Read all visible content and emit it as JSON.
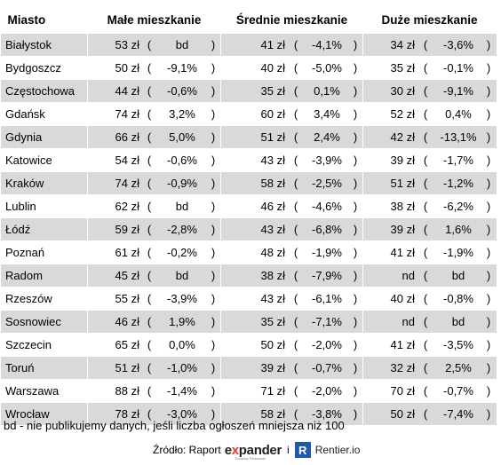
{
  "headers": {
    "city": "Miasto",
    "small": "Małe mieszkanie",
    "medium": "Średnie mieszkanie",
    "large": "Duże mieszkanie"
  },
  "rows": [
    {
      "city": "Białystok",
      "small": {
        "price": "53 zł",
        "change": "bd"
      },
      "medium": {
        "price": "41 zł",
        "change": "-4,1%"
      },
      "large": {
        "price": "34 zł",
        "change": "-3,6%"
      }
    },
    {
      "city": "Bydgoszcz",
      "small": {
        "price": "50 zł",
        "change": "-9,1%"
      },
      "medium": {
        "price": "40 zł",
        "change": "-5,0%"
      },
      "large": {
        "price": "35 zł",
        "change": "-0,1%"
      }
    },
    {
      "city": "Częstochowa",
      "small": {
        "price": "44 zł",
        "change": "-0,6%"
      },
      "medium": {
        "price": "35 zł",
        "change": "0,1%"
      },
      "large": {
        "price": "30 zł",
        "change": "-9,1%"
      }
    },
    {
      "city": "Gdańsk",
      "small": {
        "price": "74 zł",
        "change": "3,2%"
      },
      "medium": {
        "price": "60 zł",
        "change": "3,4%"
      },
      "large": {
        "price": "52 zł",
        "change": "0,4%"
      }
    },
    {
      "city": "Gdynia",
      "small": {
        "price": "66 zł",
        "change": "5,0%"
      },
      "medium": {
        "price": "51 zł",
        "change": "2,4%"
      },
      "large": {
        "price": "42 zł",
        "change": "-13,1%"
      }
    },
    {
      "city": "Katowice",
      "small": {
        "price": "54 zł",
        "change": "-0,6%"
      },
      "medium": {
        "price": "43 zł",
        "change": "-3,9%"
      },
      "large": {
        "price": "39 zł",
        "change": "-1,7%"
      }
    },
    {
      "city": "Kraków",
      "small": {
        "price": "74 zł",
        "change": "-0,9%"
      },
      "medium": {
        "price": "58 zł",
        "change": "-2,5%"
      },
      "large": {
        "price": "51 zł",
        "change": "-1,2%"
      }
    },
    {
      "city": "Lublin",
      "small": {
        "price": "62 zł",
        "change": "bd"
      },
      "medium": {
        "price": "46 zł",
        "change": "-4,6%"
      },
      "large": {
        "price": "38 zł",
        "change": "-6,2%"
      }
    },
    {
      "city": "Łódź",
      "small": {
        "price": "59 zł",
        "change": "-2,8%"
      },
      "medium": {
        "price": "43 zł",
        "change": "-6,8%"
      },
      "large": {
        "price": "39 zł",
        "change": "1,6%"
      }
    },
    {
      "city": "Poznań",
      "small": {
        "price": "61 zł",
        "change": "-0,2%"
      },
      "medium": {
        "price": "48 zł",
        "change": "-1,9%"
      },
      "large": {
        "price": "41 zł",
        "change": "-1,9%"
      }
    },
    {
      "city": "Radom",
      "small": {
        "price": "45 zł",
        "change": "bd"
      },
      "medium": {
        "price": "38 zł",
        "change": "-7,9%"
      },
      "large": {
        "price": "nd",
        "change": "bd"
      }
    },
    {
      "city": "Rzeszów",
      "small": {
        "price": "55 zł",
        "change": "-3,9%"
      },
      "medium": {
        "price": "43 zł",
        "change": "-6,1%"
      },
      "large": {
        "price": "40 zł",
        "change": "-0,8%"
      }
    },
    {
      "city": "Sosnowiec",
      "small": {
        "price": "46 zł",
        "change": "1,9%"
      },
      "medium": {
        "price": "35 zł",
        "change": "-7,1%"
      },
      "large": {
        "price": "nd",
        "change": "bd"
      }
    },
    {
      "city": "Szczecin",
      "small": {
        "price": "65 zł",
        "change": "0,0%"
      },
      "medium": {
        "price": "50 zł",
        "change": "-2,0%"
      },
      "large": {
        "price": "41 zł",
        "change": "-3,5%"
      }
    },
    {
      "city": "Toruń",
      "small": {
        "price": "51 zł",
        "change": "-1,0%"
      },
      "medium": {
        "price": "39 zł",
        "change": "-0,7%"
      },
      "large": {
        "price": "32 zł",
        "change": "2,5%"
      }
    },
    {
      "city": "Warszawa",
      "small": {
        "price": "88 zł",
        "change": "-1,4%"
      },
      "medium": {
        "price": "71 zł",
        "change": "-2,0%"
      },
      "large": {
        "price": "70 zł",
        "change": "-0,7%"
      }
    },
    {
      "city": "Wrocław",
      "small": {
        "price": "78 zł",
        "change": "-3,0%"
      },
      "medium": {
        "price": "58 zł",
        "change": "-3,8%"
      },
      "large": {
        "price": "50 zł",
        "change": "-7,4%"
      }
    }
  ],
  "paren_open": "(",
  "paren_close": ")",
  "footnote": "bd - nie publikujemy danych, jeśli liczba ogłoszeń mniejsza niż 100",
  "source": {
    "label": "Źródło: Raport",
    "logo_expander": "expander",
    "logo_expander_accent": "x",
    "logo_expander_tagline": "Doradcy Finansowi",
    "and": "i",
    "logo_rentier_mark": "R",
    "logo_rentier": "Rentier.io"
  },
  "colors": {
    "stripe": "#d9d9d9",
    "expander_accent": "#e63b2e",
    "rentier_blue": "#1e5aa8"
  }
}
